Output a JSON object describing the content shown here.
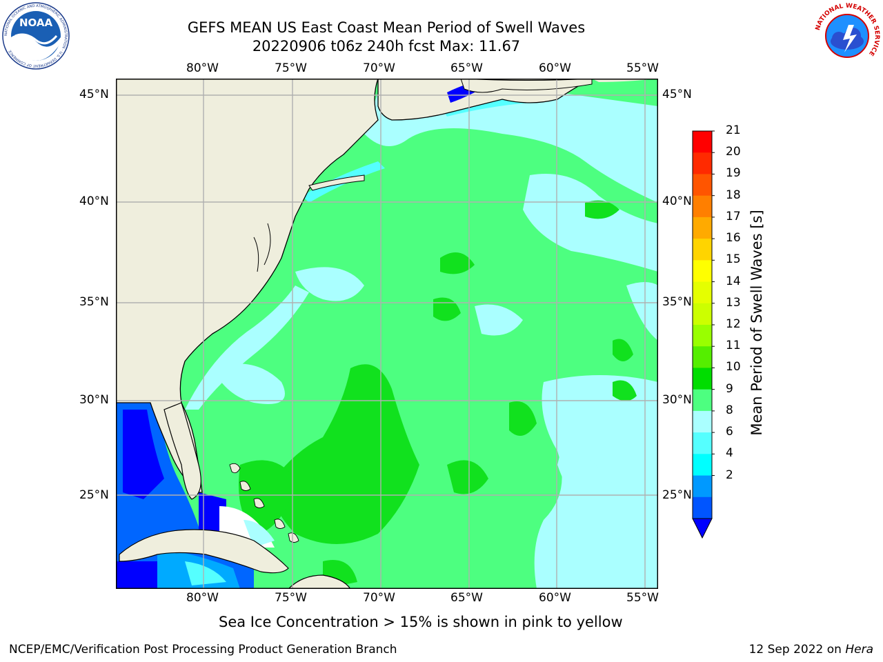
{
  "title": {
    "line1": "GEFS MEAN US East Coast Mean Period of Swell Waves",
    "line2": "20220906 t06z 240h fcst   Max: 11.67"
  },
  "map": {
    "lon_ticks": [
      "80°W",
      "75°W",
      "70°W",
      "65°W",
      "60°W",
      "55°W"
    ],
    "lat_ticks": [
      "45°N",
      "40°N",
      "35°N",
      "30°N",
      "25°N"
    ],
    "lon_range": [
      -85,
      -54
    ],
    "lat_range": [
      20.5,
      46
    ],
    "colors": {
      "land": "#efeedd",
      "grid": "#b0b0b0",
      "coast": "#000000"
    }
  },
  "colorbar": {
    "title": "Mean Period of Swell Waves [s]",
    "labels": [
      "21",
      "20",
      "19",
      "18",
      "17",
      "16",
      "15",
      "14",
      "13",
      "12",
      "11",
      "10",
      "9",
      "8",
      "6",
      "4",
      "2"
    ],
    "colors": [
      "#ff0000",
      "#ff2a00",
      "#ff5500",
      "#ff7f00",
      "#ffaa00",
      "#ffd400",
      "#ffff00",
      "#e5ff00",
      "#ccff00",
      "#99ff00",
      "#55ee00",
      "#00dd00",
      "#4dff80",
      "#aaffff",
      "#55ffff",
      "#00ffff",
      "#0099ff",
      "#0055ff"
    ],
    "extend_color": "#0000ff"
  },
  "field_colors": {
    "deep_blue": "#0000ff",
    "blue": "#0066ff",
    "light_blue": "#00aaff",
    "cyan": "#00e5ff",
    "aqua": "#55ffff",
    "pale_cyan": "#aaffff",
    "light_green": "#4dff80",
    "green": "#11e11e",
    "dark_green": "#00cc00",
    "white": "#ffffff"
  },
  "caption": "Sea Ice Concentration > 15% is shown in pink to yellow",
  "footer": {
    "left": "NCEP/EMC/Verification Post Processing Product Generation Branch",
    "right_date": "12 Sep 2022 on ",
    "right_host": "Hera"
  },
  "logos": {
    "noaa": "NOAA",
    "nws_ring": "NATIONAL WEATHER SERVICE",
    "noaa_ring": "NATIONAL OCEANIC AND ATMOSPHERIC ADMINISTRATION · U.S. DEPARTMENT OF COMMERCE"
  }
}
